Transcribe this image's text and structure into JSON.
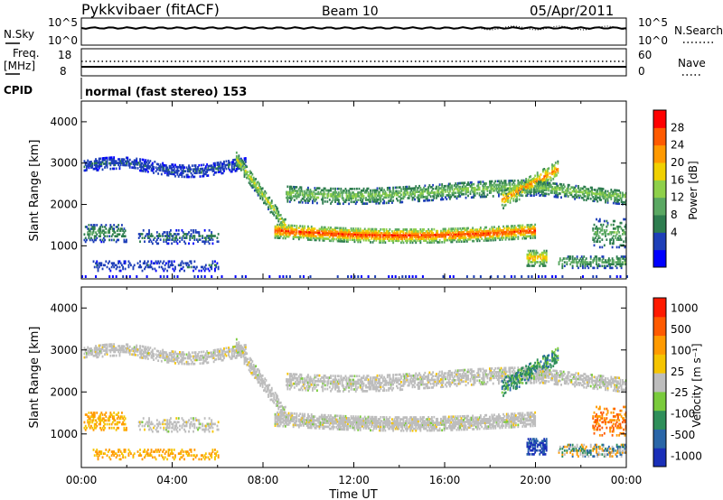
{
  "header": {
    "station": "Pykkvibaer (fitACF)",
    "beam": "Beam 10",
    "date": "05/Apr/2011"
  },
  "strip_labels": {
    "nsky": "N.Sky",
    "nsky_ticks": [
      "10^5",
      "10^0"
    ],
    "nsearch": "N.Search",
    "nsearch_ticks": [
      "10^5",
      "10^0"
    ],
    "freq": "Freq.",
    "freq_unit": "[MHz]",
    "freq_ticks": [
      "18",
      "8"
    ],
    "nave": "Nave",
    "nave_ticks": [
      "60",
      "0"
    ],
    "cpid": "CPID",
    "cpid_value": "normal (fast stereo) 153"
  },
  "chart_data": [
    {
      "type": "heatmap",
      "name": "power",
      "ylabel": "Slant Range [km]",
      "xlabel": "",
      "ylim": [
        200,
        4500
      ],
      "yticks": [
        1000,
        2000,
        3000,
        4000
      ],
      "xlim": [
        0,
        24
      ],
      "colorbar": {
        "label": "Power [dB]",
        "ticks": [
          "28",
          "24",
          "20",
          "16",
          "12",
          "8",
          "4"
        ],
        "colors": [
          "#0000ff",
          "#1e3fb8",
          "#2e7d4f",
          "#5aa862",
          "#8ed04a",
          "#f0d000",
          "#ff9900",
          "#ff5a00",
          "#ff0000"
        ]
      }
    },
    {
      "type": "heatmap",
      "name": "velocity",
      "ylabel": "Slant Range [km]",
      "xlabel": "Time UT",
      "ylim": [
        200,
        4500
      ],
      "yticks": [
        1000,
        2000,
        3000,
        4000
      ],
      "xlim": [
        0,
        24
      ],
      "xticks": [
        "00:00",
        "04:00",
        "08:00",
        "12:00",
        "16:00",
        "20:00",
        "00:00"
      ],
      "colorbar": {
        "label": "Velocity [m s⁻¹]",
        "ticks": [
          "1000",
          "500",
          "100",
          "25",
          "-25",
          "-100",
          "-500",
          "-1000"
        ],
        "colors": [
          "#1a2fb8",
          "#2a66a8",
          "#2f8f5a",
          "#7acb3c",
          "#bdbdbd",
          "#f5c400",
          "#ff9a00",
          "#ff5a00",
          "#ff1a00"
        ]
      }
    }
  ]
}
